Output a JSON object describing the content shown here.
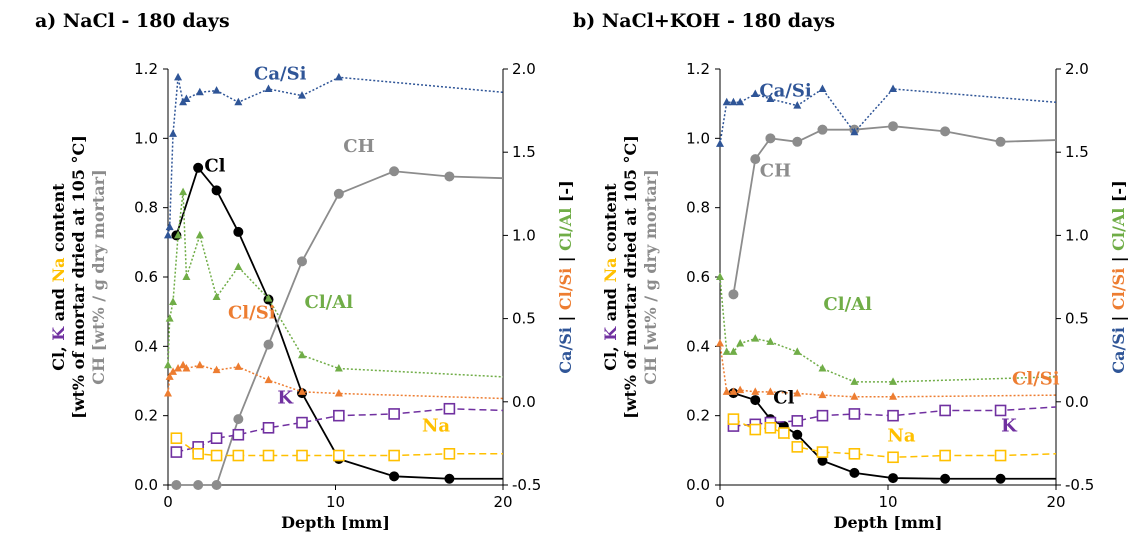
{
  "colors": {
    "Cl": "#000000",
    "CH": "#8c8c8c",
    "K": "#7030a0",
    "Na": "#ffc000",
    "Ca/Si": "#2f5597",
    "Cl/Si": "#ed7d31",
    "Cl/Al": "#70ad47"
  },
  "y_axis_label": {
    "line1": [
      {
        "text": "Cl",
        "color": "Cl"
      },
      {
        "text": ", ",
        "color": "Cl"
      },
      {
        "text": "K",
        "color": "K"
      },
      {
        "text": " and ",
        "color": "Cl"
      },
      {
        "text": "Na",
        "color": "Na"
      },
      {
        "text": " content",
        "color": "Cl"
      }
    ],
    "line2": [
      {
        "text": "[wt% of mortar dried at 105 °C]",
        "color": "Cl"
      }
    ],
    "line3": [
      {
        "text": "CH [wt% / g dry mortar]",
        "color": "CH"
      }
    ]
  },
  "y2_axis_label": [
    {
      "text": "Ca/Si",
      "color": "Ca/Si"
    },
    {
      "text": " | ",
      "color": "Cl"
    },
    {
      "text": "Cl/Si",
      "color": "Cl/Si"
    },
    {
      "text": " | ",
      "color": "Cl"
    },
    {
      "text": "Cl/Al",
      "color": "Cl/Al"
    },
    {
      "text": " [-]",
      "color": "Cl"
    }
  ],
  "chart_data": [
    {
      "type": "line",
      "title": "a) NaCl - 180 days",
      "xlabel": "Depth [mm]",
      "xlim": [
        0,
        20
      ],
      "xticks": [
        0,
        10,
        20
      ],
      "ylim": [
        0,
        1.2
      ],
      "yticks": [
        "0.0",
        "0.2",
        "0.4",
        "0.6",
        "0.8",
        "1.0",
        "1.2"
      ],
      "y2lim": [
        -0.5,
        2.0
      ],
      "y2ticks": [
        "-0.5",
        "0.0",
        "0.5",
        "1.0",
        "1.5",
        "2.0"
      ],
      "series": [
        {
          "name": "Cl",
          "axis": "left",
          "style": "solid",
          "marker": "circle-filled",
          "x": [
            0.5,
            1.8,
            2.9,
            4.2,
            6.0,
            8.0,
            10.2,
            13.5,
            16.8,
            20
          ],
          "y": [
            0.72,
            0.915,
            0.85,
            0.73,
            0.535,
            0.265,
            0.075,
            0.025,
            0.018,
            0.018
          ]
        },
        {
          "name": "CH",
          "axis": "left",
          "style": "solid",
          "marker": "circle-filled",
          "x": [
            0.5,
            1.8,
            2.9,
            4.2,
            6.0,
            8.0,
            10.2,
            13.5,
            16.8,
            20
          ],
          "y": [
            0.0,
            0.0,
            0.0,
            0.19,
            0.405,
            0.645,
            0.84,
            0.905,
            0.89,
            0.885
          ]
        },
        {
          "name": "K",
          "axis": "left",
          "style": "dashed",
          "marker": "square-open",
          "x": [
            0.5,
            1.8,
            2.9,
            4.2,
            6.0,
            8.0,
            10.2,
            13.5,
            16.8,
            20
          ],
          "y": [
            0.095,
            0.11,
            0.135,
            0.145,
            0.165,
            0.18,
            0.2,
            0.205,
            0.22,
            0.215
          ]
        },
        {
          "name": "Na",
          "axis": "left",
          "style": "dashed",
          "marker": "square-open",
          "x": [
            0.5,
            1.8,
            2.9,
            4.2,
            6.0,
            8.0,
            10.2,
            13.5,
            16.8,
            20
          ],
          "y": [
            0.135,
            0.09,
            0.085,
            0.085,
            0.085,
            0.085,
            0.085,
            0.085,
            0.09,
            0.09
          ]
        },
        {
          "name": "Ca/Si",
          "axis": "right",
          "style": "dotted",
          "marker": "triangle-filled",
          "x": [
            0.0,
            0.1,
            0.3,
            0.6,
            0.9,
            1.1,
            1.9,
            2.9,
            4.2,
            6.0,
            8.0,
            10.2,
            20
          ],
          "y": [
            1.0,
            1.05,
            1.61,
            1.95,
            1.8,
            1.82,
            1.86,
            1.87,
            1.8,
            1.88,
            1.84,
            1.95,
            1.86
          ]
        },
        {
          "name": "Cl/Si",
          "axis": "right",
          "style": "dotted",
          "marker": "triangle-filled",
          "x": [
            0.0,
            0.1,
            0.3,
            0.6,
            0.9,
            1.1,
            1.9,
            2.9,
            4.2,
            6.0,
            8.0,
            10.2,
            20
          ],
          "y": [
            0.05,
            0.15,
            0.18,
            0.2,
            0.22,
            0.2,
            0.22,
            0.19,
            0.21,
            0.13,
            0.06,
            0.05,
            0.02
          ]
        },
        {
          "name": "Cl/Al",
          "axis": "right",
          "style": "dotted",
          "marker": "triangle-filled",
          "x": [
            0.0,
            0.1,
            0.3,
            0.6,
            0.9,
            1.1,
            1.9,
            2.9,
            4.2,
            6.0,
            8.0,
            10.2,
            20
          ],
          "y": [
            0.22,
            0.5,
            0.6,
            1.0,
            1.26,
            0.75,
            1.0,
            0.63,
            0.81,
            0.62,
            0.28,
            0.2,
            0.15
          ]
        }
      ],
      "annotations": [
        {
          "text": "Ca/Si",
          "color": "Ca/Si",
          "x": 6.7,
          "y": 1.17
        },
        {
          "text": "Cl",
          "color": "Cl",
          "x": 2.8,
          "y": 0.905
        },
        {
          "text": "CH",
          "color": "CH",
          "x": 11.4,
          "y": 0.96
        },
        {
          "text": "Cl/Al",
          "color": "Cl/Al",
          "x": 9.6,
          "y": 0.51
        },
        {
          "text": "Cl/Si",
          "color": "Cl/Si",
          "x": 5.0,
          "y": 0.48
        },
        {
          "text": "K",
          "color": "K",
          "x": 7.0,
          "y": 0.235
        },
        {
          "text": "Na",
          "color": "Na",
          "x": 16.0,
          "y": 0.155
        }
      ]
    },
    {
      "type": "line",
      "title": "b) NaCl+KOH - 180 days",
      "xlabel": "Depth [mm]",
      "xlim": [
        0,
        20
      ],
      "xticks": [
        0,
        10,
        20
      ],
      "ylim": [
        0,
        1.2
      ],
      "yticks": [
        "0.0",
        "0.2",
        "0.4",
        "0.6",
        "0.8",
        "1.0",
        "1.2"
      ],
      "y2lim": [
        -0.5,
        2.0
      ],
      "y2ticks": [
        "-0.5",
        "0.0",
        "0.5",
        "1.0",
        "1.5",
        "2.0"
      ],
      "series": [
        {
          "name": "Cl",
          "axis": "left",
          "style": "solid",
          "marker": "circle-filled",
          "x": [
            0.8,
            2.1,
            3.0,
            3.8,
            4.6,
            6.1,
            8.0,
            10.3,
            13.4,
            16.7,
            20
          ],
          "y": [
            0.265,
            0.245,
            0.19,
            0.17,
            0.145,
            0.07,
            0.035,
            0.02,
            0.018,
            0.018,
            0.018
          ]
        },
        {
          "name": "CH",
          "axis": "left",
          "style": "solid",
          "marker": "circle-filled",
          "x": [
            0.8,
            2.1,
            3.0,
            4.6,
            6.1,
            8.0,
            10.3,
            13.4,
            16.7,
            20
          ],
          "y": [
            0.55,
            0.94,
            1.0,
            0.99,
            1.025,
            1.025,
            1.035,
            1.02,
            0.99,
            0.995
          ]
        },
        {
          "name": "K",
          "axis": "left",
          "style": "dashed",
          "marker": "square-open",
          "x": [
            0.8,
            2.1,
            3.0,
            4.6,
            6.1,
            8.0,
            10.3,
            13.4,
            16.7,
            20
          ],
          "y": [
            0.17,
            0.175,
            0.18,
            0.185,
            0.2,
            0.205,
            0.2,
            0.215,
            0.215,
            0.225
          ]
        },
        {
          "name": "Na",
          "axis": "left",
          "style": "dashed",
          "marker": "square-open",
          "x": [
            0.8,
            2.1,
            3.0,
            3.8,
            4.6,
            6.1,
            8.0,
            10.3,
            13.4,
            16.7,
            20
          ],
          "y": [
            0.19,
            0.16,
            0.165,
            0.15,
            0.11,
            0.095,
            0.09,
            0.08,
            0.085,
            0.085,
            0.09
          ]
        },
        {
          "name": "Ca/Si",
          "axis": "right",
          "style": "dotted",
          "marker": "triangle-filled",
          "x": [
            0.0,
            0.4,
            0.8,
            1.2,
            2.1,
            3.0,
            4.6,
            6.1,
            8.0,
            10.3,
            20
          ],
          "y": [
            1.55,
            1.8,
            1.8,
            1.8,
            1.85,
            1.82,
            1.78,
            1.88,
            1.62,
            1.88,
            1.8
          ]
        },
        {
          "name": "Cl/Si",
          "axis": "right",
          "style": "dotted",
          "marker": "triangle-filled",
          "x": [
            0.0,
            0.4,
            0.8,
            1.2,
            2.1,
            3.0,
            4.6,
            6.1,
            8.0,
            10.3,
            20
          ],
          "y": [
            0.35,
            0.06,
            0.06,
            0.07,
            0.06,
            0.06,
            0.05,
            0.04,
            0.03,
            0.03,
            0.04
          ]
        },
        {
          "name": "Cl/Al",
          "axis": "right",
          "style": "dotted",
          "marker": "triangle-filled",
          "x": [
            0.0,
            0.4,
            0.8,
            1.2,
            2.1,
            3.0,
            4.6,
            6.1,
            8.0,
            10.3,
            20
          ],
          "y": [
            0.75,
            0.3,
            0.3,
            0.35,
            0.38,
            0.36,
            0.3,
            0.2,
            0.12,
            0.12,
            0.15
          ]
        }
      ],
      "annotations": [
        {
          "text": "Ca/Si",
          "color": "Ca/Si",
          "x": 3.9,
          "y": 1.12
        },
        {
          "text": "CH",
          "color": "CH",
          "x": 3.3,
          "y": 0.89
        },
        {
          "text": "Cl/Al",
          "color": "Cl/Al",
          "x": 7.6,
          "y": 0.505
        },
        {
          "text": "Cl/Si",
          "color": "Cl/Si",
          "x": 18.8,
          "y": 0.29
        },
        {
          "text": "Cl",
          "color": "Cl",
          "x": 3.8,
          "y": 0.235
        },
        {
          "text": "Na",
          "color": "Na",
          "x": 10.8,
          "y": 0.125
        },
        {
          "text": "K",
          "color": "K",
          "x": 17.2,
          "y": 0.155
        }
      ]
    }
  ]
}
